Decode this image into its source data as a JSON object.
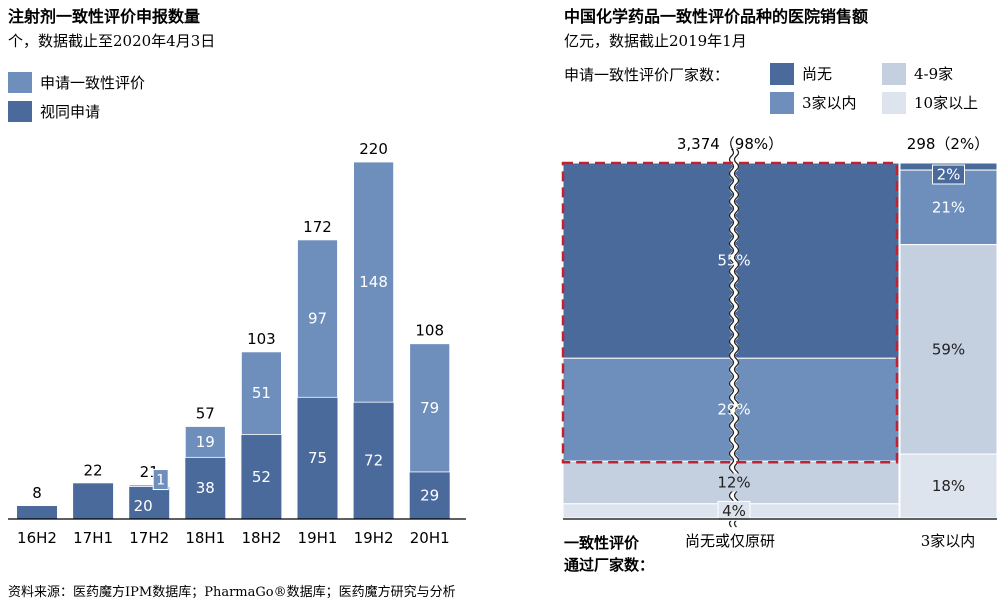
{
  "colors": {
    "dark_blue": "#4a6a9c",
    "mid_blue": "#6e8fbc",
    "light_blue": "#c4cfe0",
    "lightest_blue": "#dde4ee",
    "dashed_red": "#c0222e"
  },
  "footer": "资料来源：医药魔方IPM数据库；PharmaGo®数据库；医药魔方研究与分析",
  "chart_data": [
    {
      "type": "bar",
      "title": "注射剂一致性评价申报数量",
      "subtitle": "个，数据截止至2020年4月3日",
      "categories": [
        "16H2",
        "17H1",
        "17H2",
        "18H1",
        "18H2",
        "19H1",
        "19H2",
        "20H1"
      ],
      "series": [
        {
          "name": "视同申请",
          "values": [
            8,
            22,
            20,
            38,
            52,
            75,
            72,
            29
          ]
        },
        {
          "name": "申请一致性评价",
          "values": [
            0,
            0,
            1,
            19,
            51,
            97,
            148,
            79
          ]
        }
      ],
      "totals": [
        8,
        22,
        21,
        57,
        103,
        172,
        220,
        108
      ],
      "segment_labels": {
        "视同申请": [
          "",
          "",
          "20",
          "38",
          "52",
          "75",
          "72",
          "29"
        ],
        "申请一致性评价": [
          "",
          "",
          "1",
          "19",
          "51",
          "97",
          "148",
          "79"
        ]
      },
      "legend_order": [
        "申请一致性评价",
        "视同申请"
      ],
      "stacked": true,
      "legend_position": "top-left",
      "grid": false
    },
    {
      "type": "mekko",
      "title": "中国化学药品一致性评价品种的医院销售额",
      "subtitle": "亿元，数据截止2019年1月",
      "legend_title": "申请一致性评价厂家数：",
      "legend": [
        "尚无",
        "4-9家",
        "3家以内",
        "10家以上"
      ],
      "xaxis_title": "一致性评价通过厂家数：",
      "columns": [
        {
          "label": "尚无或仅原研",
          "header": "3,374（98%）",
          "total": 3374,
          "share": 98,
          "segments": [
            {
              "name": "尚无",
              "percent": 55
            },
            {
              "name": "3家以内",
              "percent": 29
            },
            {
              "name": "4-9家",
              "percent": 12
            },
            {
              "name": "10家以上",
              "percent": 4
            }
          ]
        },
        {
          "label": "3家以内",
          "header": "298（2%）",
          "total": 298,
          "share": 2,
          "segments": [
            {
              "name": "尚无",
              "percent": 2
            },
            {
              "name": "3家以内",
              "percent": 21
            },
            {
              "name": "4-9家",
              "percent": 59
            },
            {
              "name": "10家以上",
              "percent": 18
            }
          ]
        }
      ]
    }
  ]
}
